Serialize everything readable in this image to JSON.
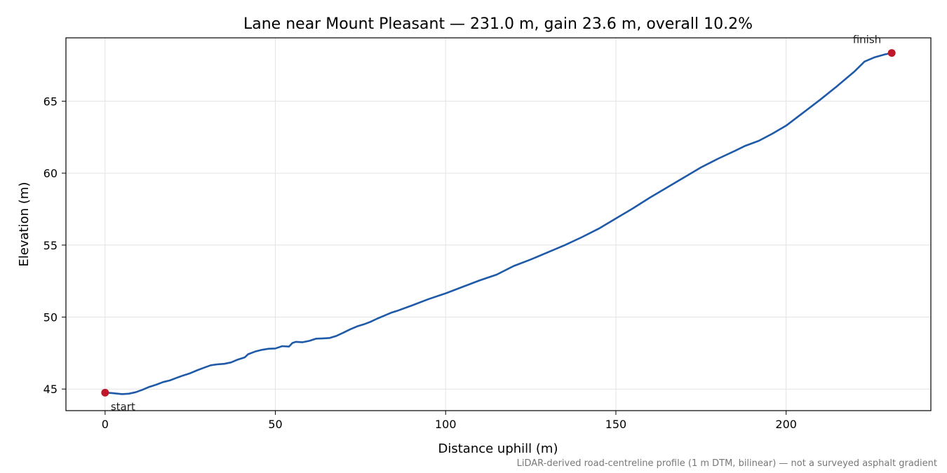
{
  "chart_data": {
    "type": "line",
    "title": "Lane near Mount Pleasant — 231.0 m, gain 23.6 m, overall 10.2%",
    "xlabel": "Distance uphill (m)",
    "ylabel": "Elevation (m)",
    "xlim": [
      -11.5,
      242.5
    ],
    "ylim": [
      43.5,
      69.4
    ],
    "xticks": [
      0,
      50,
      100,
      150,
      200
    ],
    "yticks": [
      45,
      50,
      55,
      60,
      65
    ],
    "grid": true,
    "line_color": "#1f5aa8",
    "marker_color": "#c0182a",
    "series": [
      {
        "x": [
          0,
          2,
          5,
          7,
          9,
          11,
          13,
          15,
          17,
          19,
          21,
          23,
          25,
          27,
          29,
          31,
          33,
          35,
          37,
          39,
          41,
          42,
          44,
          46,
          48,
          50,
          52,
          54,
          55,
          56,
          58,
          60,
          62,
          64,
          66,
          68,
          70,
          72,
          74,
          76,
          78,
          80,
          82,
          84,
          86,
          90,
          95,
          100,
          105,
          110,
          115,
          120,
          125,
          130,
          135,
          140,
          145,
          150,
          155,
          160,
          165,
          170,
          175,
          180,
          185,
          188,
          192,
          196,
          200,
          205,
          210,
          215,
          220,
          223,
          226,
          229,
          231
        ],
        "y": [
          44.75,
          44.72,
          44.65,
          44.68,
          44.78,
          44.95,
          45.15,
          45.3,
          45.48,
          45.6,
          45.78,
          45.95,
          46.1,
          46.3,
          46.48,
          46.65,
          46.72,
          46.75,
          46.85,
          47.05,
          47.2,
          47.42,
          47.6,
          47.72,
          47.8,
          47.82,
          47.98,
          47.95,
          48.2,
          48.28,
          48.25,
          48.35,
          48.5,
          48.52,
          48.55,
          48.7,
          48.92,
          49.15,
          49.35,
          49.5,
          49.68,
          49.9,
          50.1,
          50.3,
          50.45,
          50.8,
          51.25,
          51.65,
          52.1,
          52.55,
          52.95,
          53.55,
          54.0,
          54.5,
          55.0,
          55.55,
          56.15,
          56.85,
          57.55,
          58.3,
          59.0,
          59.7,
          60.4,
          61.0,
          61.55,
          61.9,
          62.25,
          62.75,
          63.3,
          64.2,
          65.1,
          66.05,
          67.05,
          67.75,
          68.05,
          68.25,
          68.35
        ]
      }
    ],
    "annotations": [
      {
        "label": "start",
        "x": 0,
        "y": 44.75
      },
      {
        "label": "finish",
        "x": 231,
        "y": 68.35
      }
    ],
    "footnote": "LiDAR-derived road-centreline profile (1 m DTM, bilinear) — not a surveyed asphalt gradient"
  }
}
